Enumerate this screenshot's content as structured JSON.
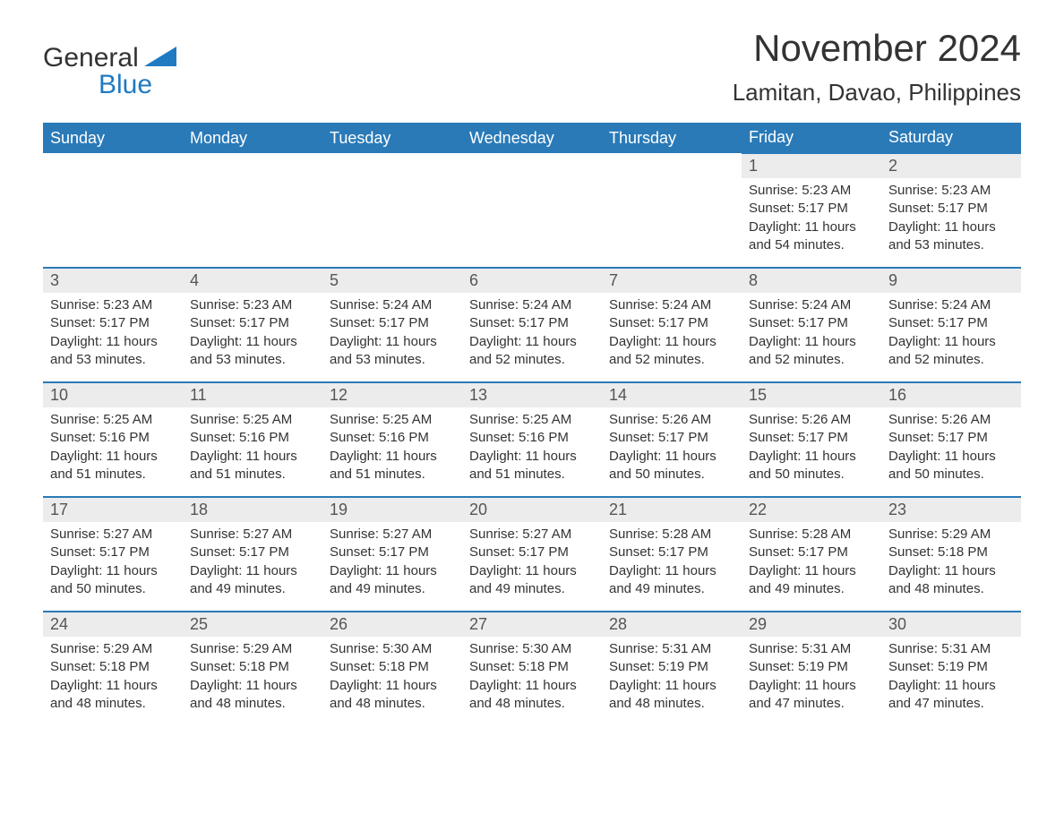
{
  "logo": {
    "word1": "General",
    "word2": "Blue",
    "accent_color": "#1f7ac2"
  },
  "header": {
    "month_title": "November 2024",
    "location": "Lamitan, Davao, Philippines"
  },
  "colors": {
    "header_bg": "#2a7ab8",
    "header_text": "#ffffff",
    "row_border": "#2a7ab8",
    "daynum_bg": "#ececec",
    "page_bg": "#ffffff",
    "text": "#333333"
  },
  "layout": {
    "columns": 7,
    "rows": 5,
    "first_day_column_index": 5
  },
  "weekdays": [
    "Sunday",
    "Monday",
    "Tuesday",
    "Wednesday",
    "Thursday",
    "Friday",
    "Saturday"
  ],
  "days": [
    {
      "n": 1,
      "sunrise": "5:23 AM",
      "sunset": "5:17 PM",
      "daylight": "11 hours and 54 minutes."
    },
    {
      "n": 2,
      "sunrise": "5:23 AM",
      "sunset": "5:17 PM",
      "daylight": "11 hours and 53 minutes."
    },
    {
      "n": 3,
      "sunrise": "5:23 AM",
      "sunset": "5:17 PM",
      "daylight": "11 hours and 53 minutes."
    },
    {
      "n": 4,
      "sunrise": "5:23 AM",
      "sunset": "5:17 PM",
      "daylight": "11 hours and 53 minutes."
    },
    {
      "n": 5,
      "sunrise": "5:24 AM",
      "sunset": "5:17 PM",
      "daylight": "11 hours and 53 minutes."
    },
    {
      "n": 6,
      "sunrise": "5:24 AM",
      "sunset": "5:17 PM",
      "daylight": "11 hours and 52 minutes."
    },
    {
      "n": 7,
      "sunrise": "5:24 AM",
      "sunset": "5:17 PM",
      "daylight": "11 hours and 52 minutes."
    },
    {
      "n": 8,
      "sunrise": "5:24 AM",
      "sunset": "5:17 PM",
      "daylight": "11 hours and 52 minutes."
    },
    {
      "n": 9,
      "sunrise": "5:24 AM",
      "sunset": "5:17 PM",
      "daylight": "11 hours and 52 minutes."
    },
    {
      "n": 10,
      "sunrise": "5:25 AM",
      "sunset": "5:16 PM",
      "daylight": "11 hours and 51 minutes."
    },
    {
      "n": 11,
      "sunrise": "5:25 AM",
      "sunset": "5:16 PM",
      "daylight": "11 hours and 51 minutes."
    },
    {
      "n": 12,
      "sunrise": "5:25 AM",
      "sunset": "5:16 PM",
      "daylight": "11 hours and 51 minutes."
    },
    {
      "n": 13,
      "sunrise": "5:25 AM",
      "sunset": "5:16 PM",
      "daylight": "11 hours and 51 minutes."
    },
    {
      "n": 14,
      "sunrise": "5:26 AM",
      "sunset": "5:17 PM",
      "daylight": "11 hours and 50 minutes."
    },
    {
      "n": 15,
      "sunrise": "5:26 AM",
      "sunset": "5:17 PM",
      "daylight": "11 hours and 50 minutes."
    },
    {
      "n": 16,
      "sunrise": "5:26 AM",
      "sunset": "5:17 PM",
      "daylight": "11 hours and 50 minutes."
    },
    {
      "n": 17,
      "sunrise": "5:27 AM",
      "sunset": "5:17 PM",
      "daylight": "11 hours and 50 minutes."
    },
    {
      "n": 18,
      "sunrise": "5:27 AM",
      "sunset": "5:17 PM",
      "daylight": "11 hours and 49 minutes."
    },
    {
      "n": 19,
      "sunrise": "5:27 AM",
      "sunset": "5:17 PM",
      "daylight": "11 hours and 49 minutes."
    },
    {
      "n": 20,
      "sunrise": "5:27 AM",
      "sunset": "5:17 PM",
      "daylight": "11 hours and 49 minutes."
    },
    {
      "n": 21,
      "sunrise": "5:28 AM",
      "sunset": "5:17 PM",
      "daylight": "11 hours and 49 minutes."
    },
    {
      "n": 22,
      "sunrise": "5:28 AM",
      "sunset": "5:17 PM",
      "daylight": "11 hours and 49 minutes."
    },
    {
      "n": 23,
      "sunrise": "5:29 AM",
      "sunset": "5:18 PM",
      "daylight": "11 hours and 48 minutes."
    },
    {
      "n": 24,
      "sunrise": "5:29 AM",
      "sunset": "5:18 PM",
      "daylight": "11 hours and 48 minutes."
    },
    {
      "n": 25,
      "sunrise": "5:29 AM",
      "sunset": "5:18 PM",
      "daylight": "11 hours and 48 minutes."
    },
    {
      "n": 26,
      "sunrise": "5:30 AM",
      "sunset": "5:18 PM",
      "daylight": "11 hours and 48 minutes."
    },
    {
      "n": 27,
      "sunrise": "5:30 AM",
      "sunset": "5:18 PM",
      "daylight": "11 hours and 48 minutes."
    },
    {
      "n": 28,
      "sunrise": "5:31 AM",
      "sunset": "5:19 PM",
      "daylight": "11 hours and 48 minutes."
    },
    {
      "n": 29,
      "sunrise": "5:31 AM",
      "sunset": "5:19 PM",
      "daylight": "11 hours and 47 minutes."
    },
    {
      "n": 30,
      "sunrise": "5:31 AM",
      "sunset": "5:19 PM",
      "daylight": "11 hours and 47 minutes."
    }
  ],
  "labels": {
    "sunrise": "Sunrise: ",
    "sunset": "Sunset: ",
    "daylight": "Daylight: "
  }
}
